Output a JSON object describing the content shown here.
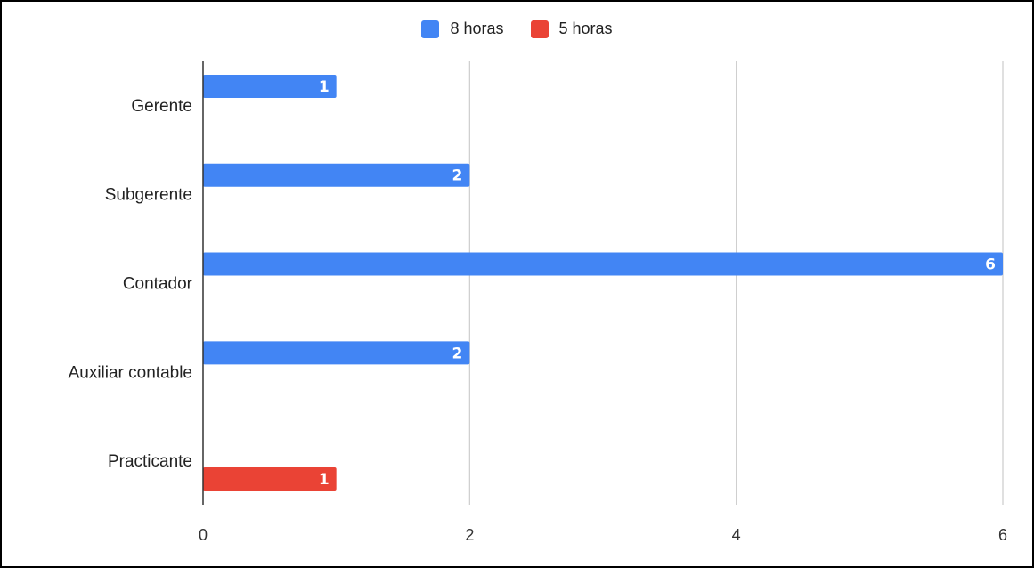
{
  "chart_data": {
    "type": "bar",
    "orientation": "horizontal",
    "categories": [
      "Gerente",
      "Subgerente",
      "Contador",
      "Auxiliar contable",
      "Practicante"
    ],
    "series": [
      {
        "name": "8 horas",
        "color": "#4285f4",
        "values": [
          1,
          2,
          6,
          2,
          null
        ]
      },
      {
        "name": "5 horas",
        "color": "#ea4335",
        "values": [
          null,
          null,
          null,
          null,
          1
        ]
      }
    ],
    "xlim": [
      0,
      6
    ],
    "xticks": [
      0,
      2,
      4,
      6
    ],
    "grid": true,
    "legend_position": "top-center",
    "data_labels": true
  }
}
